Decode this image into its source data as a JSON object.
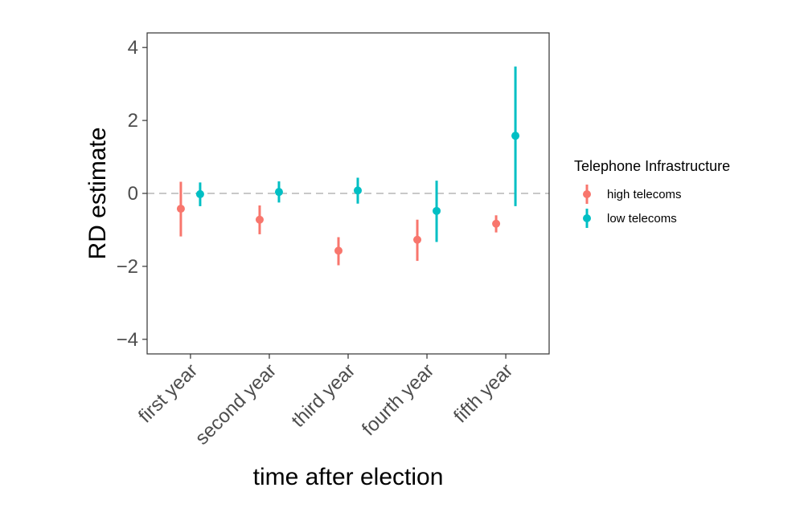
{
  "chart_data": {
    "type": "scatter",
    "subtype": "pointrange",
    "xlabel": "time after election",
    "ylabel": "RD estimate",
    "categories": [
      "first year",
      "second year",
      "third year",
      "fourth year",
      "fifth year"
    ],
    "ylim": [
      -4.4,
      4.4
    ],
    "yticks": [
      -4,
      -2,
      0,
      2,
      4
    ],
    "ytick_labels": [
      "−4",
      "−2",
      "0",
      "2",
      "4"
    ],
    "reference_line": 0,
    "grid": false,
    "legend": {
      "title": "Telephone Infrastructure",
      "position": "right"
    },
    "series": [
      {
        "name": "high telecoms",
        "color": "#F8766D",
        "estimates": [
          -0.42,
          -0.72,
          -1.57,
          -1.27,
          -0.83
        ],
        "lower": [
          -1.18,
          -1.12,
          -1.97,
          -1.85,
          -1.07
        ],
        "upper": [
          0.32,
          -0.33,
          -1.2,
          -0.72,
          -0.6
        ]
      },
      {
        "name": "low telecoms",
        "color": "#00BFC4",
        "estimates": [
          -0.02,
          0.04,
          0.08,
          -0.48,
          1.58
        ],
        "lower": [
          -0.35,
          -0.25,
          -0.28,
          -1.33,
          -0.35
        ],
        "upper": [
          0.3,
          0.33,
          0.43,
          0.35,
          3.48
        ]
      }
    ]
  }
}
